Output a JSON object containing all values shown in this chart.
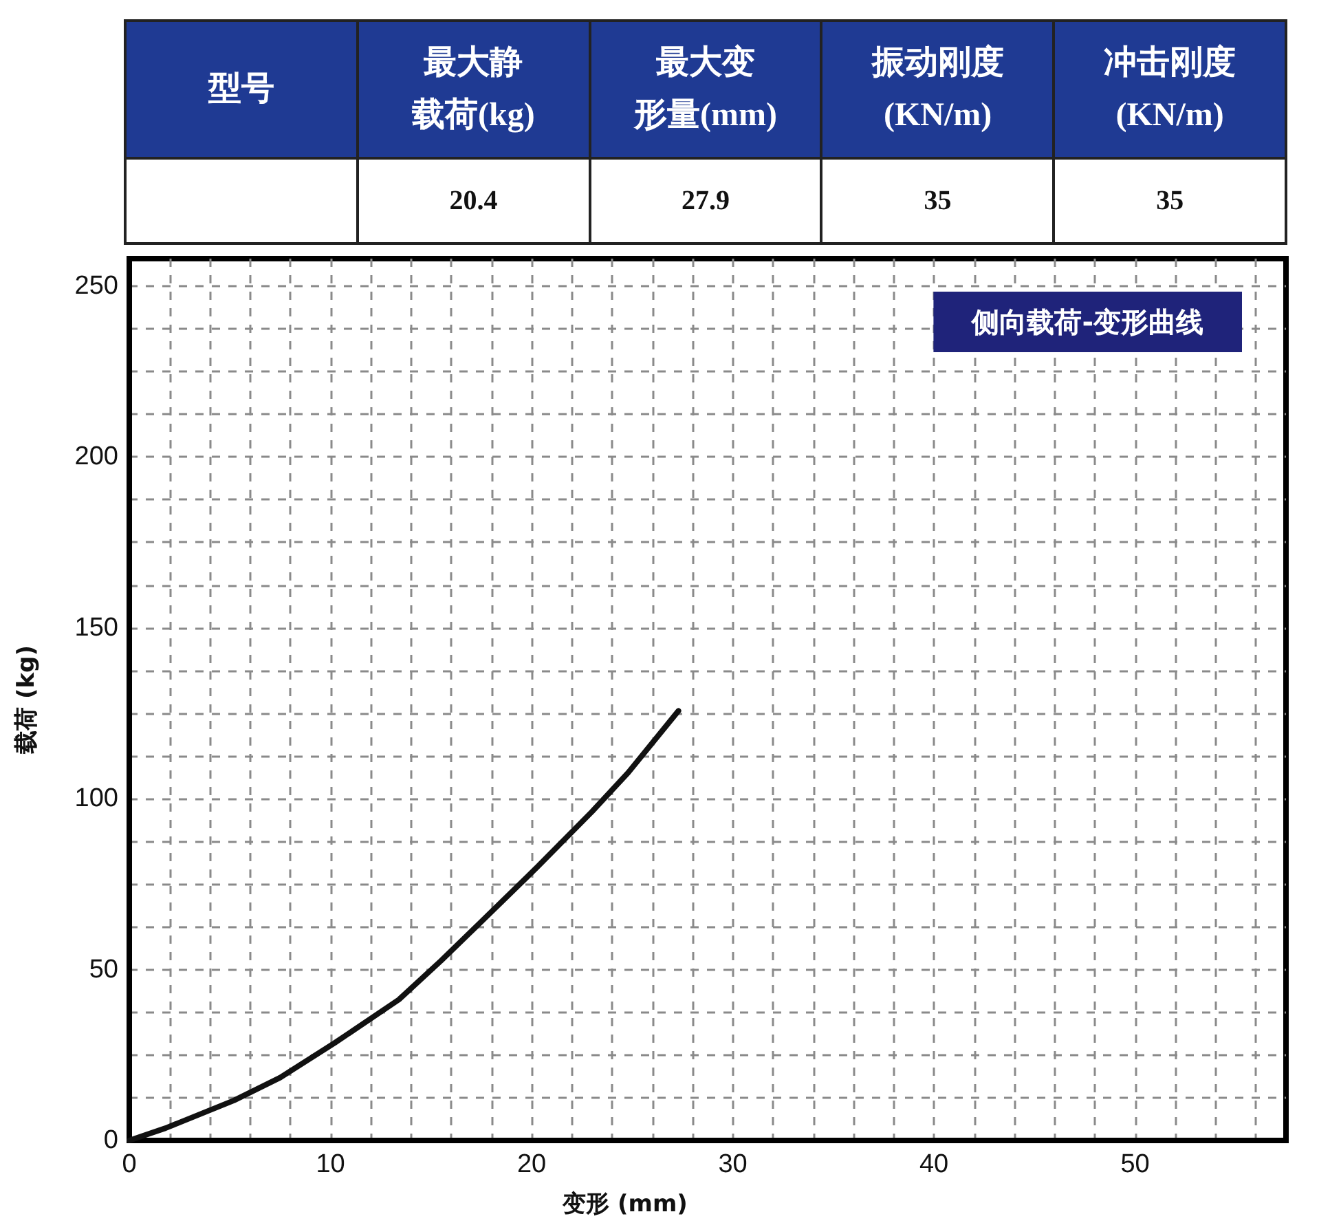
{
  "chart_data": [
    {
      "type": "other",
      "categories": [
        "型号",
        "最大静载荷(kg)",
        "最大变形量(mm)",
        "振动刚度\n(KN/m)",
        "冲击刚度\n(KN/m)"
      ],
      "values": [
        null,
        20.4,
        27.9,
        35,
        35
      ],
      "data_labels": true,
      "color": "#1f3a93"
    },
    {
      "type": "line",
      "title": "侧向载荷-变形曲线",
      "xlabel": "变形 (mm)",
      "ylabel": "载荷 (kg)",
      "x": [
        0,
        1.8,
        5.2,
        7.5,
        10.2,
        13.4,
        15.5,
        17.5,
        20.3,
        23.0,
        24.8,
        27.3
      ],
      "values": [
        0,
        3.6,
        11.7,
        18.4,
        28.5,
        41.2,
        52.6,
        64,
        80.1,
        96.2,
        107.6,
        125.7
      ],
      "color": "#111111",
      "xlim": [
        0,
        57.5
      ],
      "ylim": [
        0,
        258
      ],
      "xticks": [
        0,
        {
          "value": 2,
          "label": null
        },
        {
          "value": 4,
          "label": null
        },
        {
          "value": 6,
          "label": null
        },
        {
          "value": 8,
          "label": null
        },
        10,
        {
          "value": 12,
          "label": null
        },
        {
          "value": 14,
          "label": null
        },
        {
          "value": 16,
          "label": null
        },
        {
          "value": 18,
          "label": null
        },
        20,
        {
          "value": 22,
          "label": null
        },
        {
          "value": 24,
          "label": null
        },
        {
          "value": 26,
          "label": null
        },
        {
          "value": 28,
          "label": null
        },
        30,
        {
          "value": 32,
          "label": null
        },
        {
          "value": 34,
          "label": null
        },
        {
          "value": 36,
          "label": null
        },
        {
          "value": 38,
          "label": null
        },
        40,
        {
          "value": 42,
          "label": null
        },
        {
          "value": 44,
          "label": null
        },
        {
          "value": 46,
          "label": null
        },
        {
          "value": 48,
          "label": null
        },
        50,
        {
          "value": 52,
          "label": null
        },
        {
          "value": 54,
          "label": null
        },
        {
          "value": 56,
          "label": null
        }
      ],
      "yticks": [
        0,
        {
          "value": 12.5,
          "label": null
        },
        {
          "value": 25,
          "label": null
        },
        {
          "value": 37.5,
          "label": null
        },
        50,
        {
          "value": 62.5,
          "label": null
        },
        {
          "value": 75,
          "label": null
        },
        {
          "value": 87.5,
          "label": null
        },
        100,
        {
          "value": 112.5,
          "label": null
        },
        {
          "value": 125,
          "label": null
        },
        {
          "value": 137.5,
          "label": null
        },
        150,
        {
          "value": 162.5,
          "label": null
        },
        {
          "value": 175,
          "label": null
        },
        {
          "value": 187.5,
          "label": null
        },
        200,
        {
          "value": 212.5,
          "label": null
        },
        {
          "value": 225,
          "label": null
        },
        {
          "value": 237.5,
          "label": null
        },
        250
      ],
      "grid": true,
      "marker": "none",
      "line_style": "solid"
    }
  ]
}
